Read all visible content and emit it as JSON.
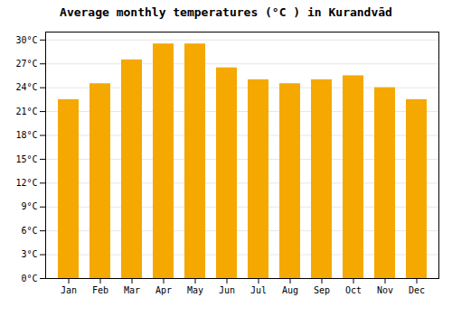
{
  "chart_data": {
    "type": "bar",
    "title": "Average monthly temperatures (°C ) in Kurandvād",
    "categories": [
      "Jan",
      "Feb",
      "Mar",
      "Apr",
      "May",
      "Jun",
      "Jul",
      "Aug",
      "Sep",
      "Oct",
      "Nov",
      "Dec"
    ],
    "values": [
      22.5,
      24.5,
      27.5,
      29.5,
      29.5,
      26.5,
      25.0,
      24.5,
      25.0,
      25.5,
      24.0,
      22.5
    ],
    "color": "#F5A800",
    "ylim": [
      0,
      31
    ],
    "yticks": [
      {
        "value": 0,
        "label": "0°C"
      },
      {
        "value": 3,
        "label": "3°C"
      },
      {
        "value": 6,
        "label": "6°C"
      },
      {
        "value": 9,
        "label": "9°C"
      },
      {
        "value": 12,
        "label": "12°C"
      },
      {
        "value": 15,
        "label": "15°C"
      },
      {
        "value": 18,
        "label": "18°C"
      },
      {
        "value": 21,
        "label": "21°C"
      },
      {
        "value": 24,
        "label": "24°C"
      },
      {
        "value": 27,
        "label": "27°C"
      },
      {
        "value": 30,
        "label": "30°C"
      }
    ],
    "grid": true
  }
}
